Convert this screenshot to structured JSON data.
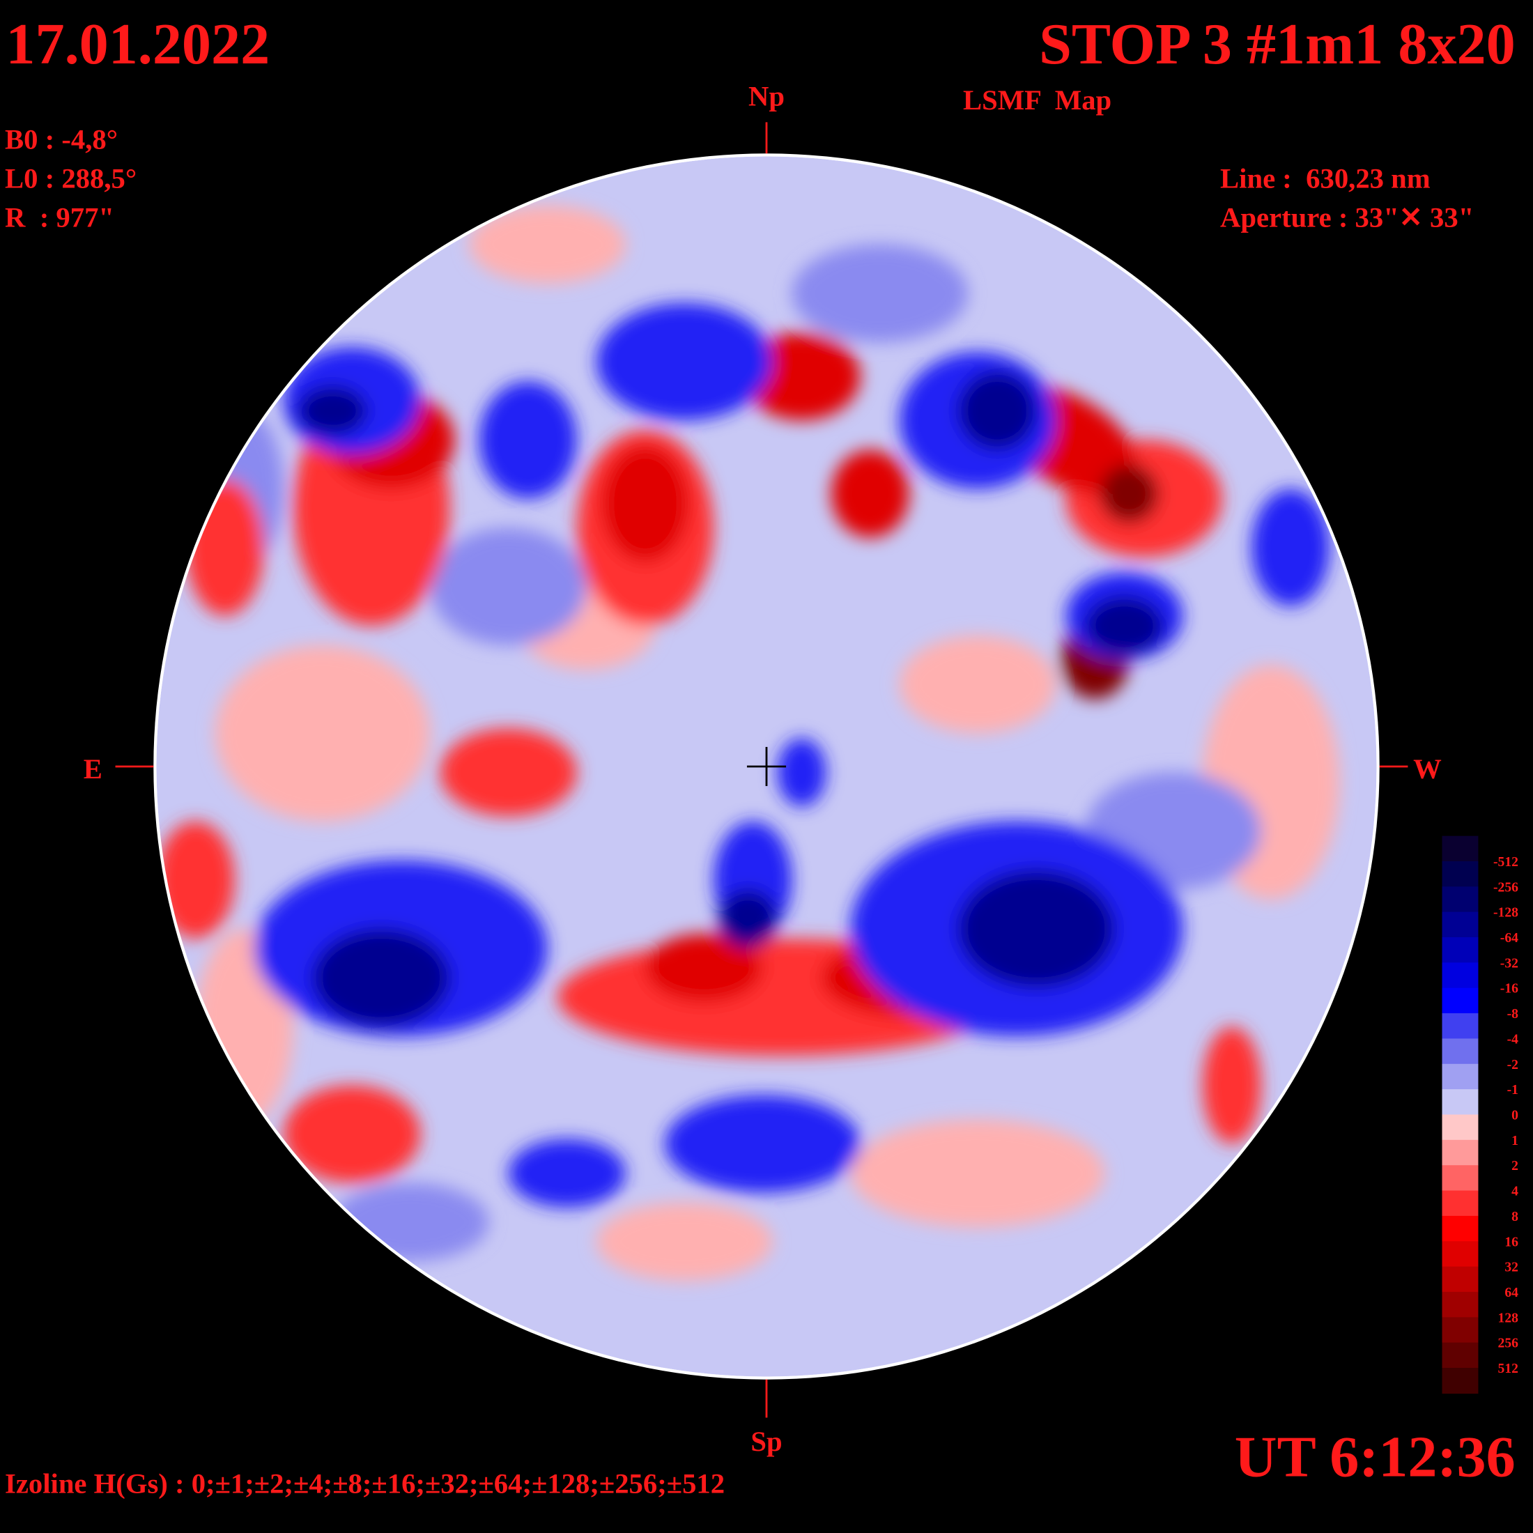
{
  "header": {
    "date": "17.01.2022",
    "title": "STOP 3 #1m1 8x20",
    "subtitle": "LSMF  Map"
  },
  "params": {
    "b0": "B0 : -4,8°",
    "l0": "L0 : 288,5°",
    "r": "R  : 977\""
  },
  "instrument": {
    "line": "Line :  630,23 nm",
    "aperture": "Aperture : 33\"✕ 33\""
  },
  "directions": {
    "north": "Np",
    "south": "Sp",
    "east": "E",
    "west": "W"
  },
  "time": "UT 6:12:36",
  "isolines": "Izoline H(Gs) : 0;±1;±2;±4;±8;±16;±32;±64;±128;±256;±512",
  "colorbar": {
    "labels": [
      -512,
      -256,
      -128,
      -64,
      -32,
      -16,
      -8,
      -4,
      -2,
      -1,
      0,
      1,
      2,
      4,
      8,
      16,
      32,
      64,
      128,
      256,
      512
    ],
    "colors": [
      "#0a0030",
      "#000050",
      "#000070",
      "#000094",
      "#0000b8",
      "#0000e0",
      "#0000ff",
      "#4040f0",
      "#7070ee",
      "#a0a0f2",
      "#c8c8f5",
      "#ffc8c8",
      "#ff9a9a",
      "#ff6464",
      "#ff3030",
      "#ff0000",
      "#e00000",
      "#c00000",
      "#a00000",
      "#800000",
      "#600000",
      "#400000"
    ]
  }
}
